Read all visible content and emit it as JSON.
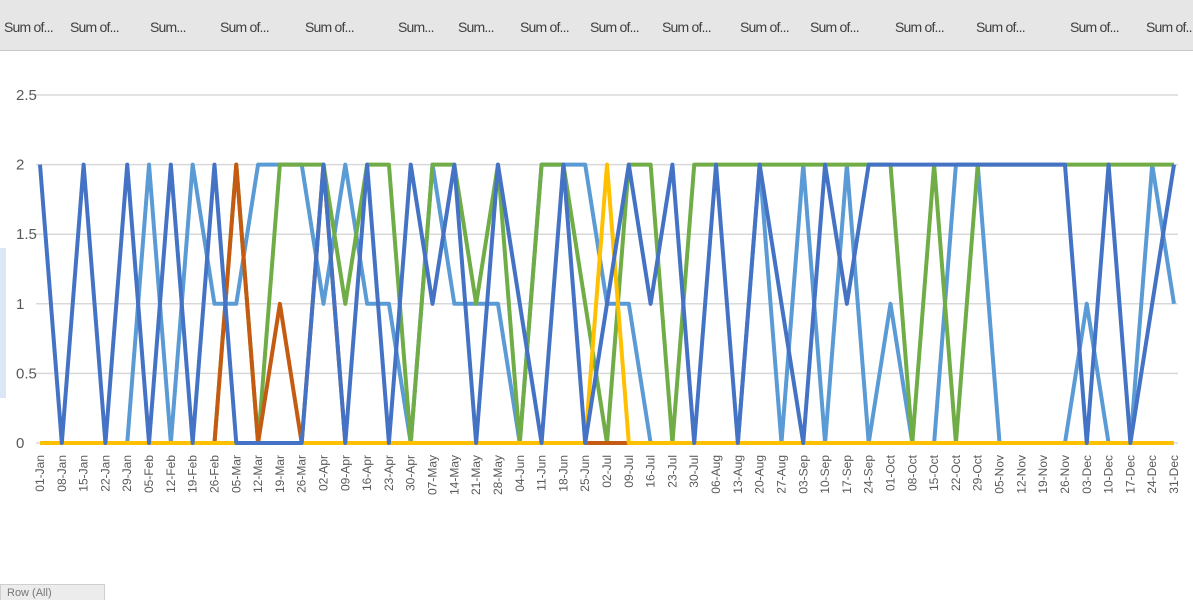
{
  "pivot_fields": [
    {
      "label": "Sum of..."
    },
    {
      "label": "Sum of..."
    },
    {
      "label": "Sum..."
    },
    {
      "label": "Sum of..."
    },
    {
      "label": "Sum of..."
    },
    {
      "label": "Sum..."
    },
    {
      "label": "Sum..."
    },
    {
      "label": "Sum of..."
    },
    {
      "label": "Sum of..."
    },
    {
      "label": "Sum of..."
    },
    {
      "label": "Sum of..."
    },
    {
      "label": "Sum of..."
    },
    {
      "label": "Sum of..."
    },
    {
      "label": "Sum of..."
    },
    {
      "label": "Sum of..."
    },
    {
      "label": "Sum of..."
    }
  ],
  "row_field_button": "Row (All)",
  "colors": {
    "field_bar": "#e6e6e6",
    "gridline": "#d9d9d9",
    "series": [
      "#4472c4",
      "#5b9bd5",
      "#70ad47",
      "#c55a11",
      "#ffc000",
      "#2e5597"
    ]
  },
  "chart_data": {
    "type": "line",
    "ylim": [
      0,
      2.5
    ],
    "yticks": [
      "0",
      "0.5",
      "1",
      "1.5",
      "2",
      "2.5"
    ],
    "grid": true,
    "legend": "none",
    "categories": [
      "01-Jan",
      "08-Jan",
      "15-Jan",
      "22-Jan",
      "29-Jan",
      "05-Feb",
      "12-Feb",
      "19-Feb",
      "26-Feb",
      "05-Mar",
      "12-Mar",
      "19-Mar",
      "26-Mar",
      "02-Apr",
      "09-Apr",
      "16-Apr",
      "23-Apr",
      "30-Apr",
      "07-May",
      "14-May",
      "21-May",
      "28-May",
      "04-Jun",
      "11-Jun",
      "18-Jun",
      "25-Jun",
      "02-Jul",
      "09-Jul",
      "16-Jul",
      "23-Jul",
      "30-Jul",
      "06-Aug",
      "13-Aug",
      "20-Aug",
      "27-Aug",
      "03-Sep",
      "10-Sep",
      "17-Sep",
      "24-Sep",
      "01-Oct",
      "08-Oct",
      "15-Oct",
      "22-Oct",
      "29-Oct",
      "05-Nov",
      "12-Nov",
      "19-Nov",
      "26-Nov",
      "03-Dec",
      "10-Dec",
      "17-Dec",
      "24-Dec",
      "31-Dec"
    ],
    "series": [
      {
        "color": "#5b9bd5",
        "values": [
          0,
          0,
          0,
          0,
          0,
          2,
          0,
          2,
          1,
          1,
          2,
          2,
          2,
          1,
          2,
          1,
          1,
          0,
          2,
          1,
          1,
          1,
          0,
          2,
          2,
          2,
          1,
          1,
          0,
          0,
          0,
          0,
          0,
          2,
          0,
          2,
          0,
          2,
          0,
          1,
          0,
          0,
          2,
          2,
          0,
          0,
          0,
          0,
          1,
          0,
          0,
          2,
          1
        ]
      },
      {
        "color": "#70ad47",
        "values": [
          0,
          0,
          0,
          0,
          0,
          0,
          0,
          0,
          0,
          2,
          0,
          2,
          2,
          2,
          1,
          2,
          2,
          0,
          2,
          2,
          1,
          2,
          0,
          2,
          2,
          1,
          0,
          2,
          2,
          0,
          2,
          2,
          2,
          2,
          2,
          2,
          2,
          2,
          2,
          2,
          0,
          2,
          0,
          2,
          2,
          2,
          2,
          2,
          2,
          2,
          2,
          2,
          2
        ]
      },
      {
        "color": "#c55a11",
        "values": [
          0,
          0,
          0,
          0,
          0,
          0,
          0,
          0,
          0,
          2,
          0,
          1,
          0,
          2,
          0,
          0,
          0,
          0,
          0,
          0,
          0,
          0,
          0,
          0,
          0,
          0,
          0,
          0,
          0,
          0,
          0,
          0,
          0,
          0,
          0,
          0,
          0,
          0,
          0,
          0,
          0,
          0,
          0,
          0,
          0,
          0,
          0,
          0,
          0,
          0,
          0,
          0,
          0
        ]
      },
      {
        "color": "#ffc000",
        "values": [
          0,
          0,
          0,
          0,
          0,
          0,
          0,
          0,
          0,
          0,
          0,
          0,
          0,
          0,
          0,
          0,
          0,
          0,
          0,
          0,
          0,
          0,
          0,
          0,
          0,
          0,
          2,
          0,
          0,
          0,
          0,
          0,
          0,
          0,
          0,
          0,
          0,
          0,
          0,
          0,
          0,
          0,
          0,
          0,
          0,
          0,
          0,
          0,
          0,
          0,
          0,
          0,
          0
        ]
      },
      {
        "color": "#4472c4",
        "values": [
          2,
          0,
          2,
          0,
          2,
          0,
          2,
          0,
          2,
          0,
          0,
          0,
          0,
          2,
          0,
          2,
          0,
          2,
          1,
          2,
          0,
          2,
          1,
          0,
          2,
          0,
          1,
          2,
          1,
          2,
          0,
          2,
          0,
          2,
          1,
          0,
          2,
          1,
          2,
          2,
          2,
          2,
          2,
          2,
          2,
          2,
          2,
          2,
          0,
          2,
          0,
          1,
          2
        ]
      }
    ]
  }
}
